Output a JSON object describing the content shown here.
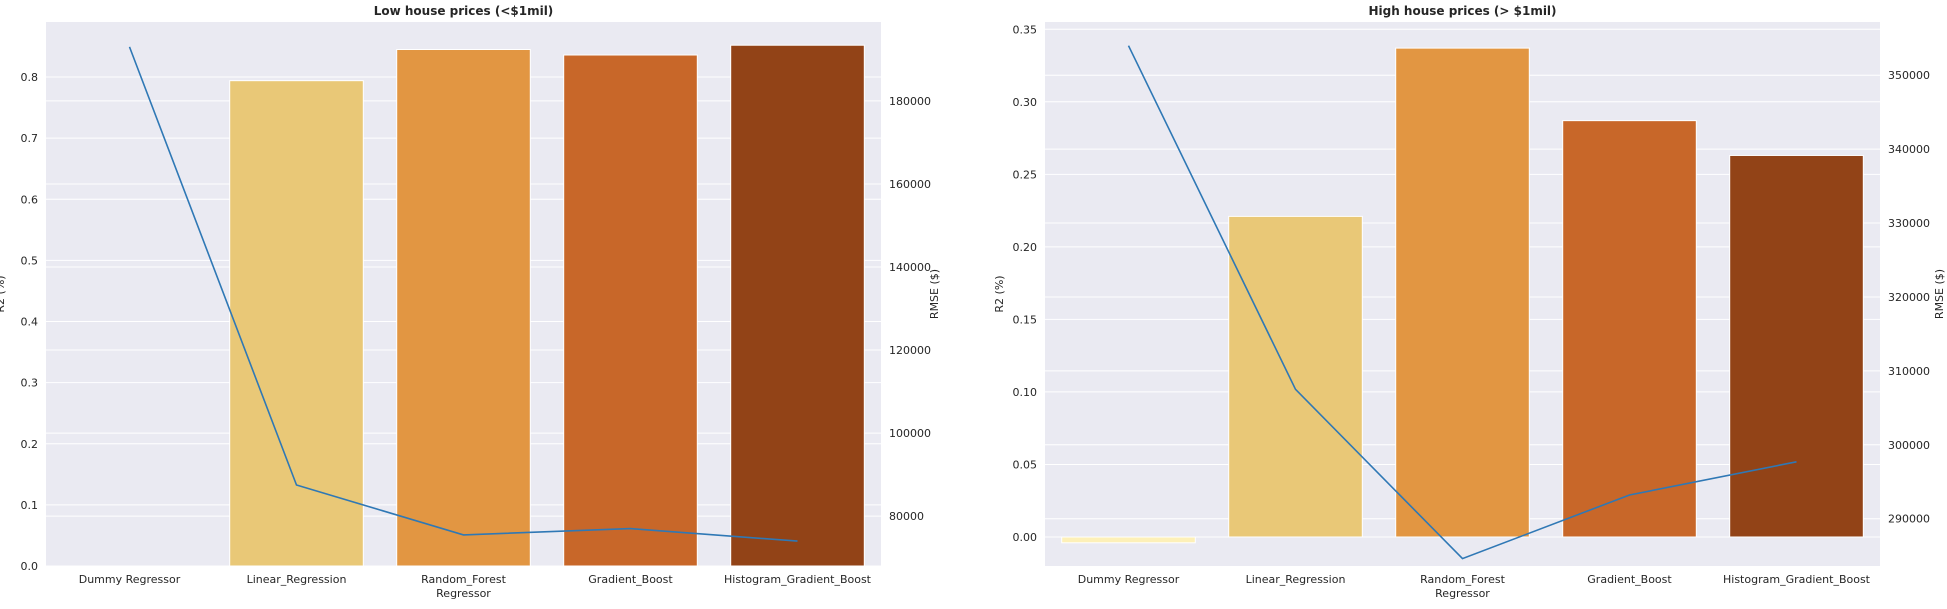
{
  "colors": {
    "panel_bg": "#eaeaf2",
    "grid": "#ffffff",
    "line": "#2f78b5",
    "text": "#262626",
    "bar_palette": [
      "#fdf0b8",
      "#e9c877",
      "#e29642",
      "#c86729",
      "#924317"
    ]
  },
  "chart_data": [
    {
      "type": "bar",
      "title": "Low house prices (<$1mil)",
      "categories": [
        "Dummy Regressor",
        "Linear_Regression",
        "Random_Forest\nRegressor",
        "Gradient_Boost",
        "Histogram_Gradient_Boost"
      ],
      "xlabel": "",
      "ylabel": "R2 (%)",
      "ylabel_right": "RMSE ($)",
      "ylim": [
        0,
        0.89
      ],
      "ylim_right": [
        68000,
        199000
      ],
      "yticks": [
        "0.0",
        "0.1",
        "0.2",
        "0.3",
        "0.4",
        "0.5",
        "0.6",
        "0.7",
        "0.8"
      ],
      "yticks_right": [
        "80000",
        "100000",
        "120000",
        "140000",
        "160000",
        "180000"
      ],
      "grid": true,
      "series": [
        {
          "kind": "bar",
          "axis": "left",
          "values": [
            0.0,
            0.794,
            0.845,
            0.836,
            0.852
          ]
        },
        {
          "kind": "line",
          "axis": "right",
          "values": [
            193000,
            87500,
            75500,
            77000,
            74000
          ]
        }
      ]
    },
    {
      "type": "bar",
      "title": "High house prices (> $1mil)",
      "categories": [
        "Dummy Regressor",
        "Linear_Regression",
        "Random_Forest\nRegressor",
        "Gradient_Boost",
        "Histogram_Gradient_Boost"
      ],
      "xlabel": "",
      "ylabel": "R2 (%)",
      "ylabel_right": "RMSE ($)",
      "ylim": [
        -0.02,
        0.355
      ],
      "ylim_right": [
        283600,
        357200
      ],
      "yticks": [
        "0.00",
        "0.05",
        "0.10",
        "0.15",
        "0.20",
        "0.25",
        "0.30",
        "0.35"
      ],
      "yticks_right": [
        "290000",
        "300000",
        "310000",
        "320000",
        "330000",
        "340000",
        "350000"
      ],
      "grid": true,
      "series": [
        {
          "kind": "bar",
          "axis": "left",
          "values": [
            -0.004,
            0.221,
            0.337,
            0.287,
            0.263
          ]
        },
        {
          "kind": "line",
          "axis": "right",
          "values": [
            354000,
            307500,
            284600,
            293200,
            297700
          ]
        }
      ]
    }
  ]
}
